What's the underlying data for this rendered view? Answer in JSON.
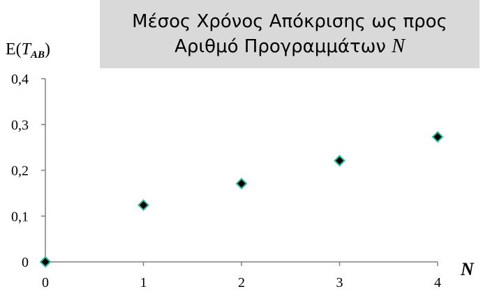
{
  "chart_data": {
    "type": "scatter",
    "title_line1": "Μέσος Χρόνος Απόκρισης ως προς",
    "title_line2": "Αριθμό Προγραμμάτων",
    "title_var": "N",
    "ylabel_prefix": "E(",
    "ylabel_var": "T",
    "ylabel_sub": "AB",
    "ylabel_suffix": ")",
    "xlabel": "N",
    "x": [
      0,
      1,
      2,
      3,
      4
    ],
    "y": [
      0,
      0.124,
      0.171,
      0.221,
      0.273
    ],
    "xlim": [
      0,
      4
    ],
    "ylim": [
      0,
      0.4
    ],
    "xticks": [
      "0",
      "1",
      "2",
      "3",
      "4"
    ],
    "yticks": [
      "0",
      "0,1",
      "0,2",
      "0,3",
      "0,4"
    ],
    "grid": false,
    "marker": "diamond",
    "marker_fill": "#000000",
    "marker_edge": "#2bbf9f"
  }
}
